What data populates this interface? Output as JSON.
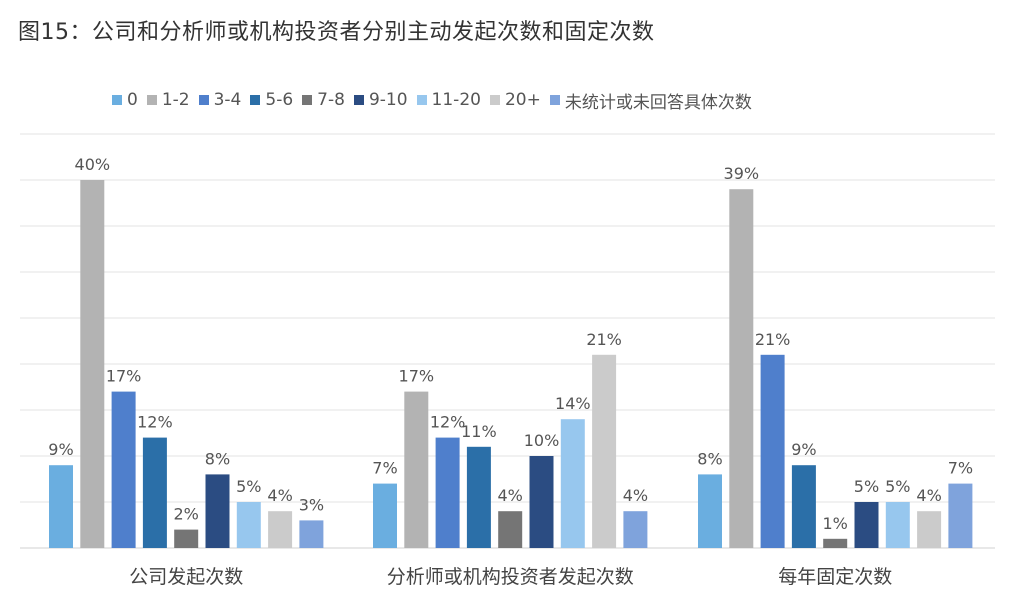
{
  "figure_title": "图15：公司和分析师或机构投资者分别主动发起次数和固定次数",
  "chart_data": {
    "type": "bar",
    "categories": [
      "公司发起次数",
      "分析师或机构投资者发起次数",
      "每年固定次数"
    ],
    "series": [
      {
        "name": "0",
        "color": "#6aaee0",
        "values": [
          9,
          7,
          8
        ]
      },
      {
        "name": "1-2",
        "color": "#b3b3b3",
        "values": [
          40,
          17,
          39
        ]
      },
      {
        "name": "3-4",
        "color": "#4f7fcc",
        "values": [
          17,
          12,
          21
        ]
      },
      {
        "name": "5-6",
        "color": "#2b6fa8",
        "values": [
          12,
          11,
          9
        ]
      },
      {
        "name": "7-8",
        "color": "#757575",
        "values": [
          2,
          4,
          1
        ]
      },
      {
        "name": "9-10",
        "color": "#2b4c82",
        "values": [
          8,
          10,
          5
        ]
      },
      {
        "name": "11-20",
        "color": "#97c7ee",
        "values": [
          5,
          14,
          5
        ]
      },
      {
        "name": "20+",
        "color": "#cbcbcb",
        "values": [
          4,
          21,
          4
        ]
      },
      {
        "name": "未统计或未回答具体次数",
        "color": "#7fa3dc",
        "values": [
          3,
          4,
          7
        ]
      }
    ],
    "value_labels": [
      [
        "9%",
        "7%",
        "8%"
      ],
      [
        "40%",
        "17%",
        "39%"
      ],
      [
        "17%",
        "12%",
        "21%"
      ],
      [
        "12%",
        "11%",
        "9%"
      ],
      [
        "2%",
        "4%",
        "1%"
      ],
      [
        "8%",
        "10%",
        "5%"
      ],
      [
        "5%",
        "14%",
        "5%"
      ],
      [
        "4%",
        "21%",
        "4%"
      ],
      [
        "3%",
        "4%",
        "7%"
      ]
    ],
    "ylim": [
      0,
      45
    ],
    "gridlines": true,
    "legend_position": "top",
    "xlabel": "",
    "ylabel": ""
  }
}
